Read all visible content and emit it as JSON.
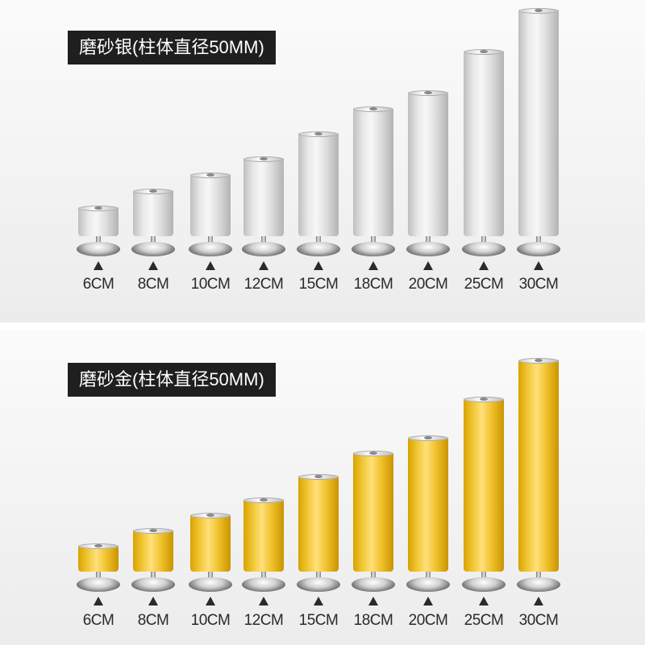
{
  "silver": {
    "title": "磨砂银(柱体直径50MM)",
    "finish_color": "#d9d9d9",
    "sizes": [
      {
        "label": "6CM",
        "height_cm": 6
      },
      {
        "label": "8CM",
        "height_cm": 8
      },
      {
        "label": "10CM",
        "height_cm": 10
      },
      {
        "label": "12CM",
        "height_cm": 12
      },
      {
        "label": "15CM",
        "height_cm": 15
      },
      {
        "label": "18CM",
        "height_cm": 18
      },
      {
        "label": "20CM",
        "height_cm": 20
      },
      {
        "label": "25CM",
        "height_cm": 25
      },
      {
        "label": "30CM",
        "height_cm": 30
      }
    ]
  },
  "gold": {
    "title": "磨砂金(柱体直径50MM)",
    "finish_color": "#f0c12b",
    "sizes": [
      {
        "label": "6CM",
        "height_cm": 6
      },
      {
        "label": "8CM",
        "height_cm": 8
      },
      {
        "label": "10CM",
        "height_cm": 10
      },
      {
        "label": "12CM",
        "height_cm": 12
      },
      {
        "label": "15CM",
        "height_cm": 15
      },
      {
        "label": "18CM",
        "height_cm": 18
      },
      {
        "label": "20CM",
        "height_cm": 20
      },
      {
        "label": "25CM",
        "height_cm": 25
      },
      {
        "label": "30CM",
        "height_cm": 30
      }
    ]
  }
}
